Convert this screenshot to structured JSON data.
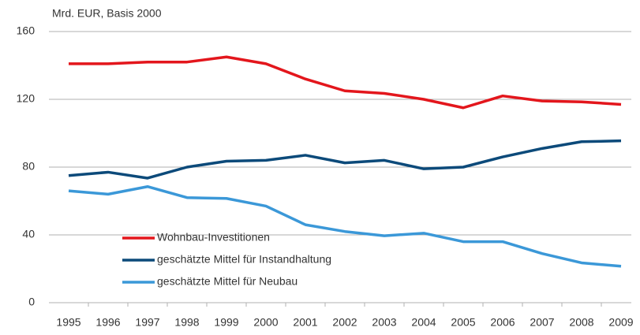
{
  "chart_data": {
    "type": "line",
    "subtitle": "Mrd. EUR, Basis 2000",
    "categories": [
      "1995",
      "1996",
      "1997",
      "1998",
      "1999",
      "2000",
      "2001",
      "2002",
      "2003",
      "2004",
      "2005",
      "2006",
      "2007",
      "2008",
      "2009"
    ],
    "series": [
      {
        "name": "Wohnbau-Investitionen",
        "color": "#e3161c",
        "values": [
          141,
          141,
          142,
          142,
          145,
          141,
          132,
          125,
          123.5,
          120,
          115,
          122,
          119,
          118.5,
          117
        ]
      },
      {
        "name": "geschätzte Mittel für Instandhaltung",
        "color": "#0c4a7a",
        "values": [
          75,
          77,
          73.5,
          80,
          83.5,
          84,
          87,
          82.5,
          84,
          79,
          80,
          86,
          91,
          95,
          95.5
        ]
      },
      {
        "name": "geschätzte Mittel für Neubau",
        "color": "#3b98d8",
        "values": [
          66,
          64,
          68.5,
          62,
          61.5,
          57,
          46,
          42,
          39.5,
          41,
          36,
          36,
          29,
          23.5,
          21.5
        ]
      }
    ],
    "ylim": [
      0,
      160
    ],
    "yticks": [
      0,
      40,
      80,
      120,
      160
    ],
    "grid": true
  }
}
